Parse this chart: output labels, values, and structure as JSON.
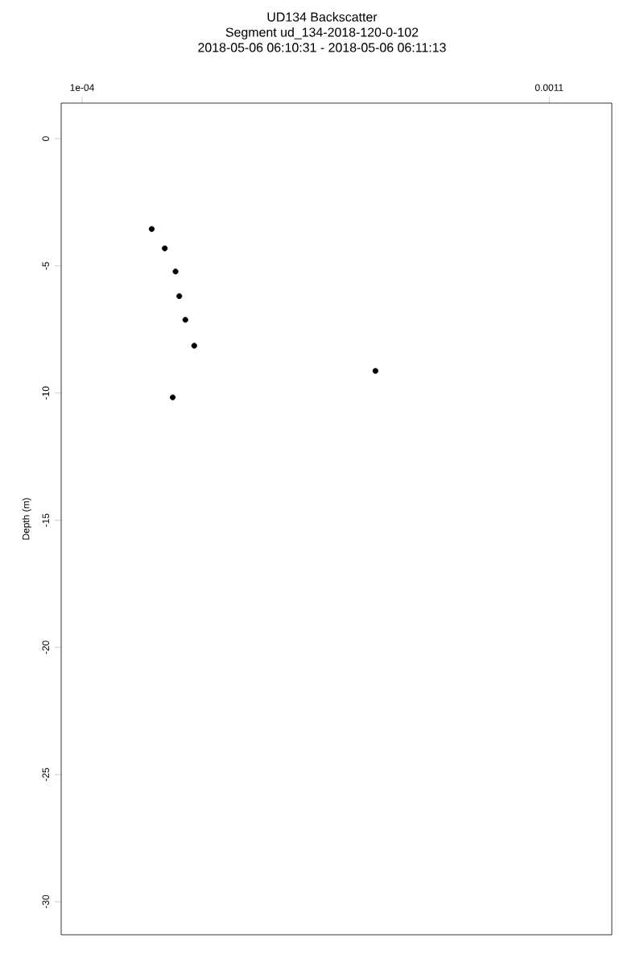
{
  "chart_data": {
    "type": "scatter",
    "title": "UD134 Backscatter",
    "subtitle": "Segment ud_134-2018-120-0-102",
    "annotations": [
      "2018-05-06 06:10:31 - 2018-05-06 06:11:13"
    ],
    "ylabel": "Depth (m)",
    "x": [
      0.000249,
      0.000277,
      0.0003,
      0.000308,
      0.000321,
      0.00034,
      0.000728,
      0.000294
    ],
    "values": [
      -3.55,
      -4.31,
      -5.22,
      -6.19,
      -7.12,
      -8.14,
      -9.13,
      -10.17
    ],
    "color": "#000000",
    "marker": "circle",
    "xlim": [
      5.52e-05,
      0.001234
    ],
    "xticks": [
      {
        "value": 0.0001,
        "label": "1e-04"
      },
      0.0011
    ],
    "ylim": [
      -31.3,
      1.4
    ],
    "yticks": [
      -30,
      -25,
      -20,
      -15,
      -10,
      -5,
      0
    ],
    "grid": false,
    "legend": false
  }
}
